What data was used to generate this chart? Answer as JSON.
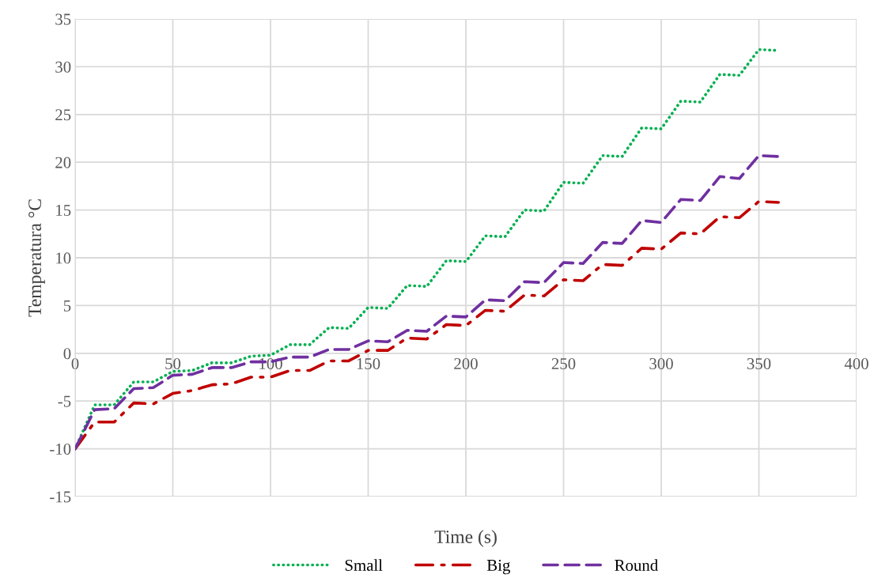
{
  "chart_data": {
    "type": "line",
    "xlabel": "Time (s)",
    "ylabel": "Temperatura °C",
    "x": [
      0,
      10,
      20,
      30,
      40,
      50,
      60,
      70,
      80,
      90,
      100,
      110,
      120,
      130,
      140,
      150,
      160,
      170,
      180,
      190,
      200,
      210,
      220,
      230,
      240,
      250,
      260,
      270,
      280,
      290,
      300,
      310,
      320,
      330,
      340,
      350,
      360
    ],
    "series": [
      {
        "name": "Small",
        "color": "#00b050",
        "line_style": "dotted",
        "values": [
          -10,
          -5.4,
          -5.4,
          -3.0,
          -3.0,
          -1.9,
          -1.8,
          -1.0,
          -1.0,
          -0.3,
          -0.2,
          0.9,
          0.9,
          2.7,
          2.6,
          4.8,
          4.7,
          7.1,
          7.0,
          9.7,
          9.6,
          12.3,
          12.2,
          15.0,
          14.9,
          17.9,
          17.8,
          20.7,
          20.6,
          23.6,
          23.5,
          26.4,
          26.3,
          29.2,
          29.1,
          31.8,
          31.7
        ]
      },
      {
        "name": "Big",
        "color": "#c00000",
        "line_style": "dashdot",
        "values": [
          -10,
          -7.2,
          -7.2,
          -5.2,
          -5.3,
          -4.2,
          -3.9,
          -3.3,
          -3.2,
          -2.5,
          -2.5,
          -1.8,
          -1.8,
          -0.8,
          -0.8,
          0.3,
          0.3,
          1.6,
          1.5,
          3.0,
          2.9,
          4.5,
          4.4,
          6.1,
          6.0,
          7.7,
          7.6,
          9.3,
          9.2,
          11.0,
          10.9,
          12.6,
          12.5,
          14.3,
          14.2,
          15.9,
          15.8
        ]
      },
      {
        "name": "Round",
        "color": "#7030a0",
        "line_style": "dashed",
        "values": [
          -10,
          -5.9,
          -5.8,
          -3.7,
          -3.6,
          -2.3,
          -2.2,
          -1.5,
          -1.5,
          -0.9,
          -0.9,
          -0.4,
          -0.4,
          0.4,
          0.4,
          1.3,
          1.2,
          2.4,
          2.3,
          3.9,
          3.8,
          5.6,
          5.5,
          7.5,
          7.4,
          9.5,
          9.4,
          11.6,
          11.5,
          13.9,
          13.7,
          16.1,
          16.0,
          18.5,
          18.3,
          20.7,
          20.6
        ]
      }
    ],
    "xlim": [
      0,
      400
    ],
    "xticks": [
      0,
      50,
      100,
      150,
      200,
      250,
      300,
      350,
      400
    ],
    "ylim": [
      -15,
      35
    ],
    "yticks": [
      -15,
      -10,
      -5,
      0,
      5,
      10,
      15,
      20,
      25,
      30,
      35
    ],
    "grid": true,
    "legend": "bottom",
    "marker": "none"
  }
}
